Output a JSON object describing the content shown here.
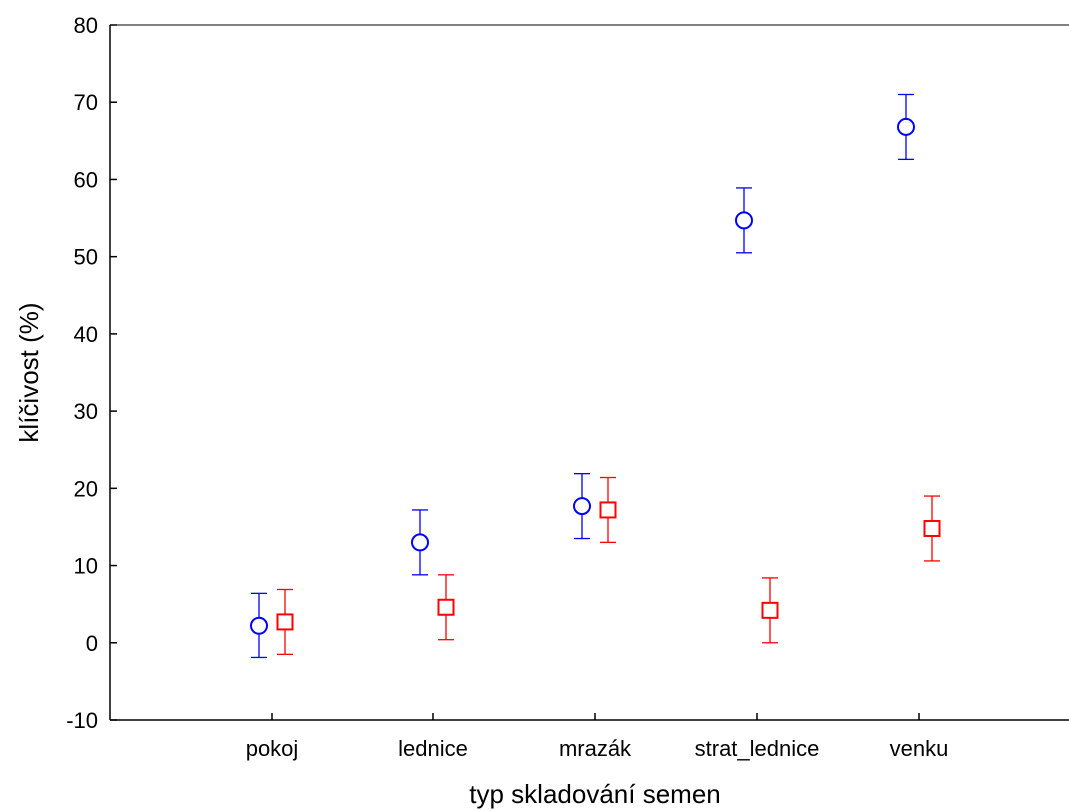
{
  "chart_data": {
    "type": "scatter",
    "title": "",
    "xlabel": "typ skladování semen",
    "ylabel": "klíčivost (%)",
    "categories": [
      "pokoj",
      "lednice",
      "mrazák",
      "strat_lednice",
      "venku"
    ],
    "ylim": [
      -10,
      80
    ],
    "yticks": [
      "-10",
      "0",
      "10",
      "20",
      "30",
      "40",
      "50",
      "60",
      "70",
      "80"
    ],
    "grid": false,
    "series": [
      {
        "marker": "circle",
        "color": "#0000ff",
        "values": [
          2.2,
          13.0,
          17.7,
          54.7,
          66.8
        ],
        "lower": [
          -1.9,
          8.8,
          13.5,
          50.5,
          62.6
        ],
        "upper": [
          6.4,
          17.2,
          21.9,
          58.9,
          71.0
        ]
      },
      {
        "marker": "square",
        "color": "#ff0000",
        "values": [
          2.7,
          4.6,
          17.2,
          4.2,
          14.8
        ],
        "lower": [
          -1.5,
          0.4,
          13.0,
          0.0,
          10.6
        ],
        "upper": [
          6.9,
          8.8,
          21.4,
          8.4,
          19.0
        ]
      }
    ]
  }
}
